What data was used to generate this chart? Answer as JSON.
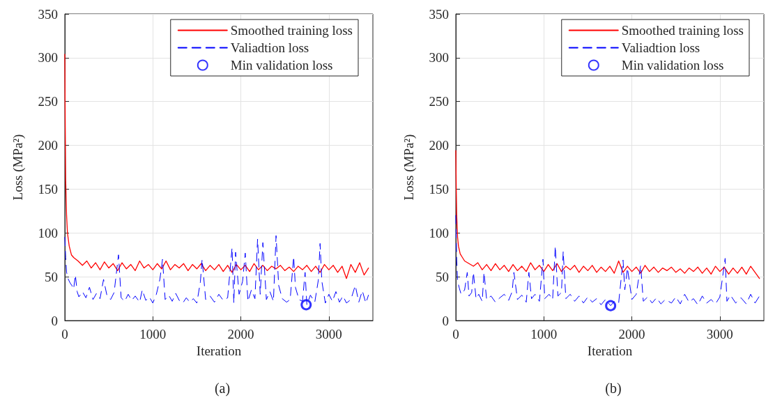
{
  "chart_data": [
    {
      "type": "line",
      "xlabel": "Iteration",
      "ylabel": "Loss (MPa²)",
      "annotations": [
        "(a)"
      ],
      "xlim": [
        0,
        3500
      ],
      "xticks": [
        0,
        1000,
        2000,
        3000
      ],
      "ylim": [
        0,
        350
      ],
      "yticks": [
        0,
        50,
        100,
        150,
        200,
        250,
        300,
        350
      ],
      "grid": true,
      "legend": "top right",
      "series": [
        {
          "name": "Smoothed training loss",
          "color": "#ff0000",
          "line_style": "solid",
          "marker": "none",
          "x": [
            0,
            5,
            10,
            20,
            30,
            50,
            75,
            100,
            150,
            200,
            250,
            300,
            350,
            400,
            450,
            500,
            550,
            600,
            650,
            700,
            750,
            800,
            850,
            900,
            950,
            1000,
            1050,
            1100,
            1150,
            1200,
            1250,
            1300,
            1350,
            1400,
            1450,
            1500,
            1550,
            1600,
            1650,
            1700,
            1750,
            1800,
            1850,
            1900,
            1950,
            2000,
            2050,
            2100,
            2150,
            2200,
            2250,
            2300,
            2350,
            2400,
            2450,
            2500,
            2550,
            2600,
            2650,
            2700,
            2750,
            2800,
            2850,
            2900,
            2950,
            3000,
            3050,
            3100,
            3150,
            3200,
            3250,
            3300,
            3350,
            3400,
            3450
          ],
          "values": [
            304,
            220,
            160,
            120,
            100,
            85,
            75,
            72,
            68,
            63,
            68,
            60,
            66,
            58,
            67,
            60,
            65,
            57,
            66,
            59,
            64,
            57,
            68,
            60,
            64,
            58,
            65,
            59,
            68,
            58,
            64,
            60,
            65,
            57,
            64,
            59,
            65,
            57,
            63,
            58,
            64,
            56,
            63,
            55,
            64,
            58,
            63,
            56,
            65,
            58,
            63,
            57,
            62,
            59,
            63,
            57,
            61,
            56,
            62,
            58,
            63,
            56,
            62,
            55,
            64,
            58,
            63,
            55,
            62,
            48,
            64,
            55,
            66,
            52,
            60
          ]
        },
        {
          "name": "Valiadtion loss",
          "color": "#0000ff",
          "line_style": "dashed",
          "marker": "none",
          "x": [
            0,
            10,
            20,
            40,
            60,
            80,
            100,
            120,
            140,
            160,
            200,
            240,
            280,
            320,
            360,
            400,
            440,
            480,
            520,
            560,
            610,
            640,
            680,
            720,
            760,
            800,
            850,
            880,
            920,
            960,
            1000,
            1040,
            1080,
            1110,
            1140,
            1180,
            1220,
            1260,
            1300,
            1340,
            1380,
            1420,
            1460,
            1500,
            1540,
            1560,
            1600,
            1650,
            1700,
            1750,
            1800,
            1850,
            1900,
            1920,
            1940,
            1980,
            2020,
            2050,
            2080,
            2120,
            2160,
            2190,
            2220,
            2250,
            2290,
            2330,
            2370,
            2400,
            2430,
            2470,
            2520,
            2560,
            2600,
            2620,
            2660,
            2700,
            2730,
            2750,
            2790,
            2840,
            2880,
            2900,
            2920,
            2960,
            3000,
            3040,
            3080,
            3120,
            3160,
            3200,
            3250,
            3300,
            3340,
            3380,
            3420,
            3450
          ],
          "values": [
            95,
            72,
            55,
            47,
            43,
            40,
            36,
            52,
            33,
            27,
            33,
            26,
            38,
            24,
            31,
            25,
            47,
            28,
            24,
            32,
            75,
            26,
            22,
            30,
            23,
            28,
            21,
            35,
            23,
            27,
            20,
            30,
            47,
            70,
            24,
            29,
            22,
            31,
            23,
            20,
            26,
            21,
            25,
            20,
            44,
            70,
            24,
            28,
            21,
            30,
            23,
            26,
            83,
            20,
            78,
            30,
            45,
            77,
            22,
            35,
            25,
            93,
            30,
            89,
            24,
            33,
            22,
            97,
            40,
            25,
            21,
            24,
            73,
            38,
            24,
            22,
            55,
            18,
            29,
            21,
            46,
            88,
            45,
            20,
            30,
            22,
            33,
            21,
            28,
            20,
            24,
            40,
            21,
            34,
            20,
            29
          ]
        },
        {
          "name": "Min validation loss",
          "type": "scatter",
          "color": "#0000ff",
          "marker": "circle",
          "x": [
            2742
          ],
          "values": [
            18
          ]
        }
      ]
    },
    {
      "type": "line",
      "xlabel": "Iteration",
      "ylabel": "Loss (MPa²)",
      "annotations": [
        "(b)"
      ],
      "xlim": [
        0,
        3500
      ],
      "xticks": [
        0,
        1000,
        2000,
        3000
      ],
      "ylim": [
        0,
        350
      ],
      "yticks": [
        0,
        50,
        100,
        150,
        200,
        250,
        300,
        350
      ],
      "grid": true,
      "legend": "top right",
      "series": [
        {
          "name": "Smoothed training loss",
          "color": "#ff0000",
          "line_style": "solid",
          "marker": "none",
          "x": [
            0,
            5,
            10,
            20,
            30,
            50,
            75,
            100,
            150,
            200,
            250,
            300,
            350,
            400,
            450,
            500,
            550,
            600,
            650,
            700,
            750,
            800,
            850,
            900,
            950,
            1000,
            1050,
            1100,
            1150,
            1200,
            1250,
            1300,
            1350,
            1400,
            1450,
            1500,
            1550,
            1600,
            1650,
            1700,
            1750,
            1800,
            1850,
            1900,
            1950,
            2000,
            2050,
            2100,
            2150,
            2200,
            2250,
            2300,
            2350,
            2400,
            2450,
            2500,
            2550,
            2600,
            2650,
            2700,
            2750,
            2800,
            2850,
            2900,
            2950,
            3000,
            3050,
            3100,
            3150,
            3200,
            3250,
            3300,
            3350,
            3400,
            3450
          ],
          "values": [
            194,
            150,
            120,
            95,
            85,
            76,
            72,
            68,
            65,
            62,
            66,
            58,
            64,
            57,
            65,
            58,
            63,
            56,
            64,
            57,
            62,
            56,
            66,
            58,
            63,
            56,
            64,
            57,
            65,
            56,
            62,
            58,
            63,
            55,
            62,
            57,
            63,
            55,
            61,
            56,
            62,
            54,
            68,
            55,
            62,
            56,
            61,
            54,
            63,
            56,
            61,
            55,
            60,
            57,
            61,
            55,
            59,
            54,
            60,
            56,
            61,
            54,
            60,
            53,
            62,
            56,
            61,
            53,
            60,
            54,
            61,
            53,
            62,
            55,
            48
          ]
        },
        {
          "name": "Valiadtion loss",
          "color": "#0000ff",
          "line_style": "dashed",
          "marker": "none",
          "x": [
            0,
            10,
            20,
            40,
            60,
            100,
            130,
            150,
            180,
            200,
            230,
            260,
            300,
            320,
            350,
            400,
            450,
            500,
            550,
            600,
            640,
            660,
            700,
            750,
            800,
            830,
            860,
            900,
            950,
            990,
            1010,
            1060,
            1100,
            1130,
            1160,
            1200,
            1220,
            1250,
            1300,
            1350,
            1400,
            1450,
            1500,
            1550,
            1600,
            1650,
            1700,
            1759,
            1800,
            1850,
            1900,
            1920,
            1950,
            2000,
            2050,
            2100,
            2130,
            2180,
            2230,
            2280,
            2330,
            2380,
            2450,
            2500,
            2550,
            2600,
            2650,
            2700,
            2750,
            2800,
            2850,
            2900,
            2950,
            3000,
            3060,
            3080,
            3120,
            3180,
            3240,
            3300,
            3350,
            3400,
            3450
          ],
          "values": [
            120,
            70,
            45,
            37,
            30,
            35,
            55,
            28,
            32,
            55,
            25,
            30,
            22,
            55,
            24,
            28,
            21,
            26,
            30,
            23,
            33,
            55,
            24,
            29,
            21,
            55,
            25,
            30,
            22,
            70,
            25,
            30,
            24,
            85,
            28,
            32,
            79,
            25,
            30,
            22,
            28,
            20,
            27,
            21,
            25,
            18,
            24,
            17,
            22,
            20,
            69,
            35,
            60,
            24,
            30,
            63,
            22,
            27,
            20,
            26,
            19,
            24,
            20,
            27,
            19,
            30,
            21,
            25,
            18,
            28,
            20,
            24,
            19,
            27,
            71,
            22,
            29,
            20,
            26,
            19,
            30,
            20,
            28
          ]
        },
        {
          "name": "Min validation loss",
          "type": "scatter",
          "color": "#0000ff",
          "marker": "circle",
          "x": [
            1759
          ],
          "values": [
            17
          ]
        }
      ]
    }
  ]
}
